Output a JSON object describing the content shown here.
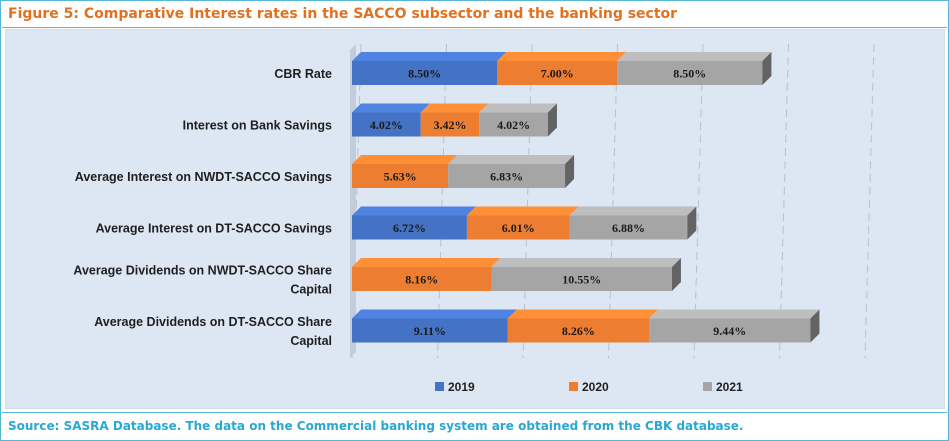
{
  "figure": {
    "title": "Figure 5: Comparative Interest rates in the SACCO subsector and the banking sector",
    "source": "Source: SASRA Database. The data on the Commercial banking system are obtained from the CBK database."
  },
  "chart_data": {
    "type": "bar",
    "orientation": "horizontal",
    "stacked": true,
    "style": "3d",
    "categories": [
      [
        "CBR Rate"
      ],
      [
        "Interest on Bank Savings"
      ],
      [
        "Average Interest on NWDT-SACCO Savings"
      ],
      [
        "Average Interest on DT-SACCO Savings"
      ],
      [
        "Average Dividends on NWDT-SACCO Share",
        "Capital"
      ],
      [
        "Average Dividends on DT-SACCO Share",
        "Capital"
      ]
    ],
    "series": [
      {
        "name": "2019",
        "color": "#4472c4",
        "values": [
          8.5,
          4.02,
          null,
          6.72,
          null,
          9.11
        ],
        "labels": [
          "8.50%",
          "4.02%",
          "",
          "6.72%",
          "",
          "9.11%"
        ]
      },
      {
        "name": "2020",
        "color": "#ed7d31",
        "values": [
          7.0,
          3.42,
          5.63,
          6.01,
          8.16,
          8.26
        ],
        "labels": [
          "7.00%",
          "3.42%",
          "5.63%",
          "6.01%",
          "8.16%",
          "8.26%"
        ]
      },
      {
        "name": "2021",
        "color": "#a5a5a5",
        "values": [
          8.5,
          4.02,
          6.83,
          6.88,
          10.55,
          9.44
        ],
        "labels": [
          "8.50%",
          "4.02%",
          "6.83%",
          "6.88%",
          "10.55%",
          "9.44%"
        ]
      }
    ],
    "xlim": [
      0,
      30
    ],
    "grid": true,
    "legend": "bottom"
  }
}
